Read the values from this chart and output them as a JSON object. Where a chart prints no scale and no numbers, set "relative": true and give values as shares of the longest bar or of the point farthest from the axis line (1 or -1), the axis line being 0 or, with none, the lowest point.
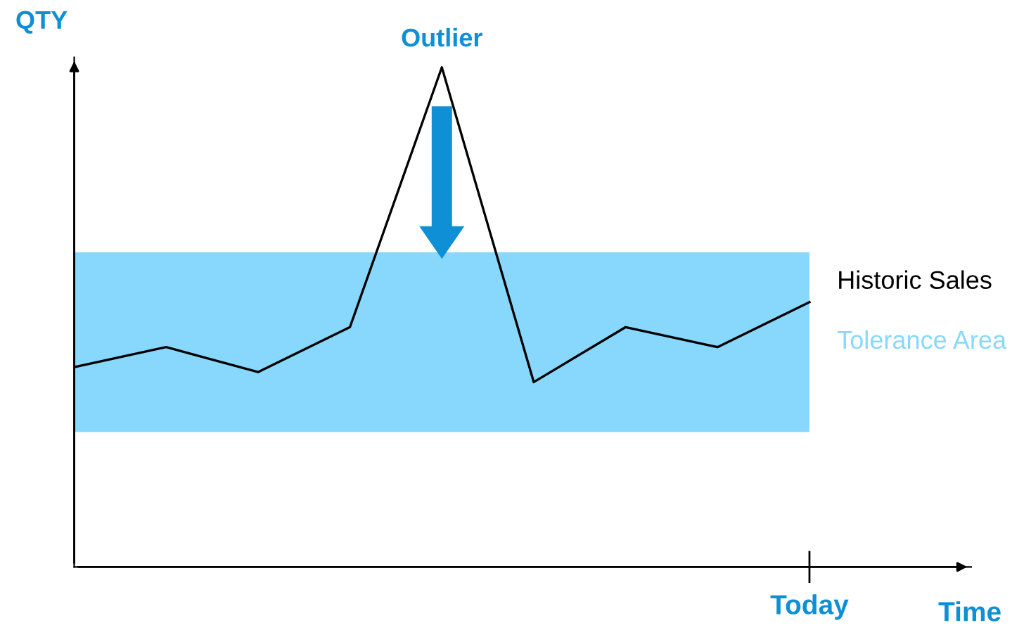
{
  "chart_data": {
    "type": "line",
    "relative": true,
    "xlabel": "Time",
    "ylabel": "QTY",
    "categories": [
      null,
      null,
      null,
      null,
      null,
      null,
      null,
      null,
      null
    ],
    "series": [
      {
        "name": "Historic Sales",
        "color": "#000000",
        "values": [
          0.4,
          0.44,
          0.39,
          0.48,
          1,
          0.37,
          0.48,
          0.44,
          0.53
        ]
      }
    ],
    "bands": [
      {
        "axis": "y",
        "from": 0.27,
        "to": 0.63,
        "label": "Tolerance Area",
        "color": "#87d8fc"
      }
    ],
    "annotations": [
      "Outlier",
      "Today"
    ],
    "legend": false,
    "marker": "none",
    "line_style": "solid"
  }
}
